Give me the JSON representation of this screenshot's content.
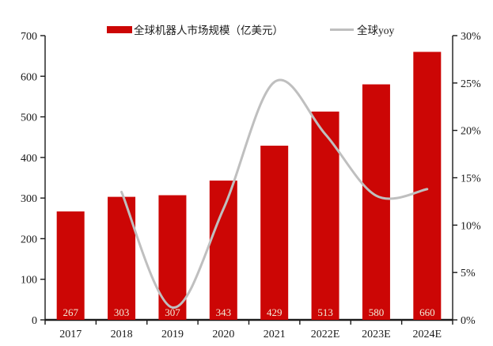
{
  "chart_data": {
    "type": "bar",
    "subtype": "bar-with-smoothed-line",
    "title": "",
    "categories": [
      "2017",
      "2018",
      "2019",
      "2020",
      "2021",
      "2022E",
      "2023E",
      "2024E"
    ],
    "series": [
      {
        "name": "全球机器人市场规模（亿美元）",
        "type": "bar",
        "axis": "left",
        "color": "#CC0605",
        "label_color": "#F2EDD9",
        "values": [
          267,
          303,
          307,
          343,
          429,
          513,
          580,
          660
        ]
      },
      {
        "name": "全球yoy",
        "type": "line",
        "axis": "right",
        "color": "#BFBFBF",
        "smooth": true,
        "values": [
          null,
          13.5,
          1.3,
          11.7,
          25.1,
          19.6,
          13.1,
          13.8
        ]
      }
    ],
    "left_axis": {
      "min": 0,
      "max": 700,
      "step": 100,
      "ticks": [
        "0",
        "100",
        "200",
        "300",
        "400",
        "500",
        "600",
        "700"
      ]
    },
    "right_axis": {
      "min": 0,
      "max": 30,
      "step": 5,
      "ticks": [
        "0%",
        "5%",
        "10%",
        "15%",
        "20%",
        "25%",
        "30%"
      ]
    },
    "grid": false,
    "legend_position": "top",
    "axis_color": "#1a1a1a",
    "background": "#ffffff"
  }
}
